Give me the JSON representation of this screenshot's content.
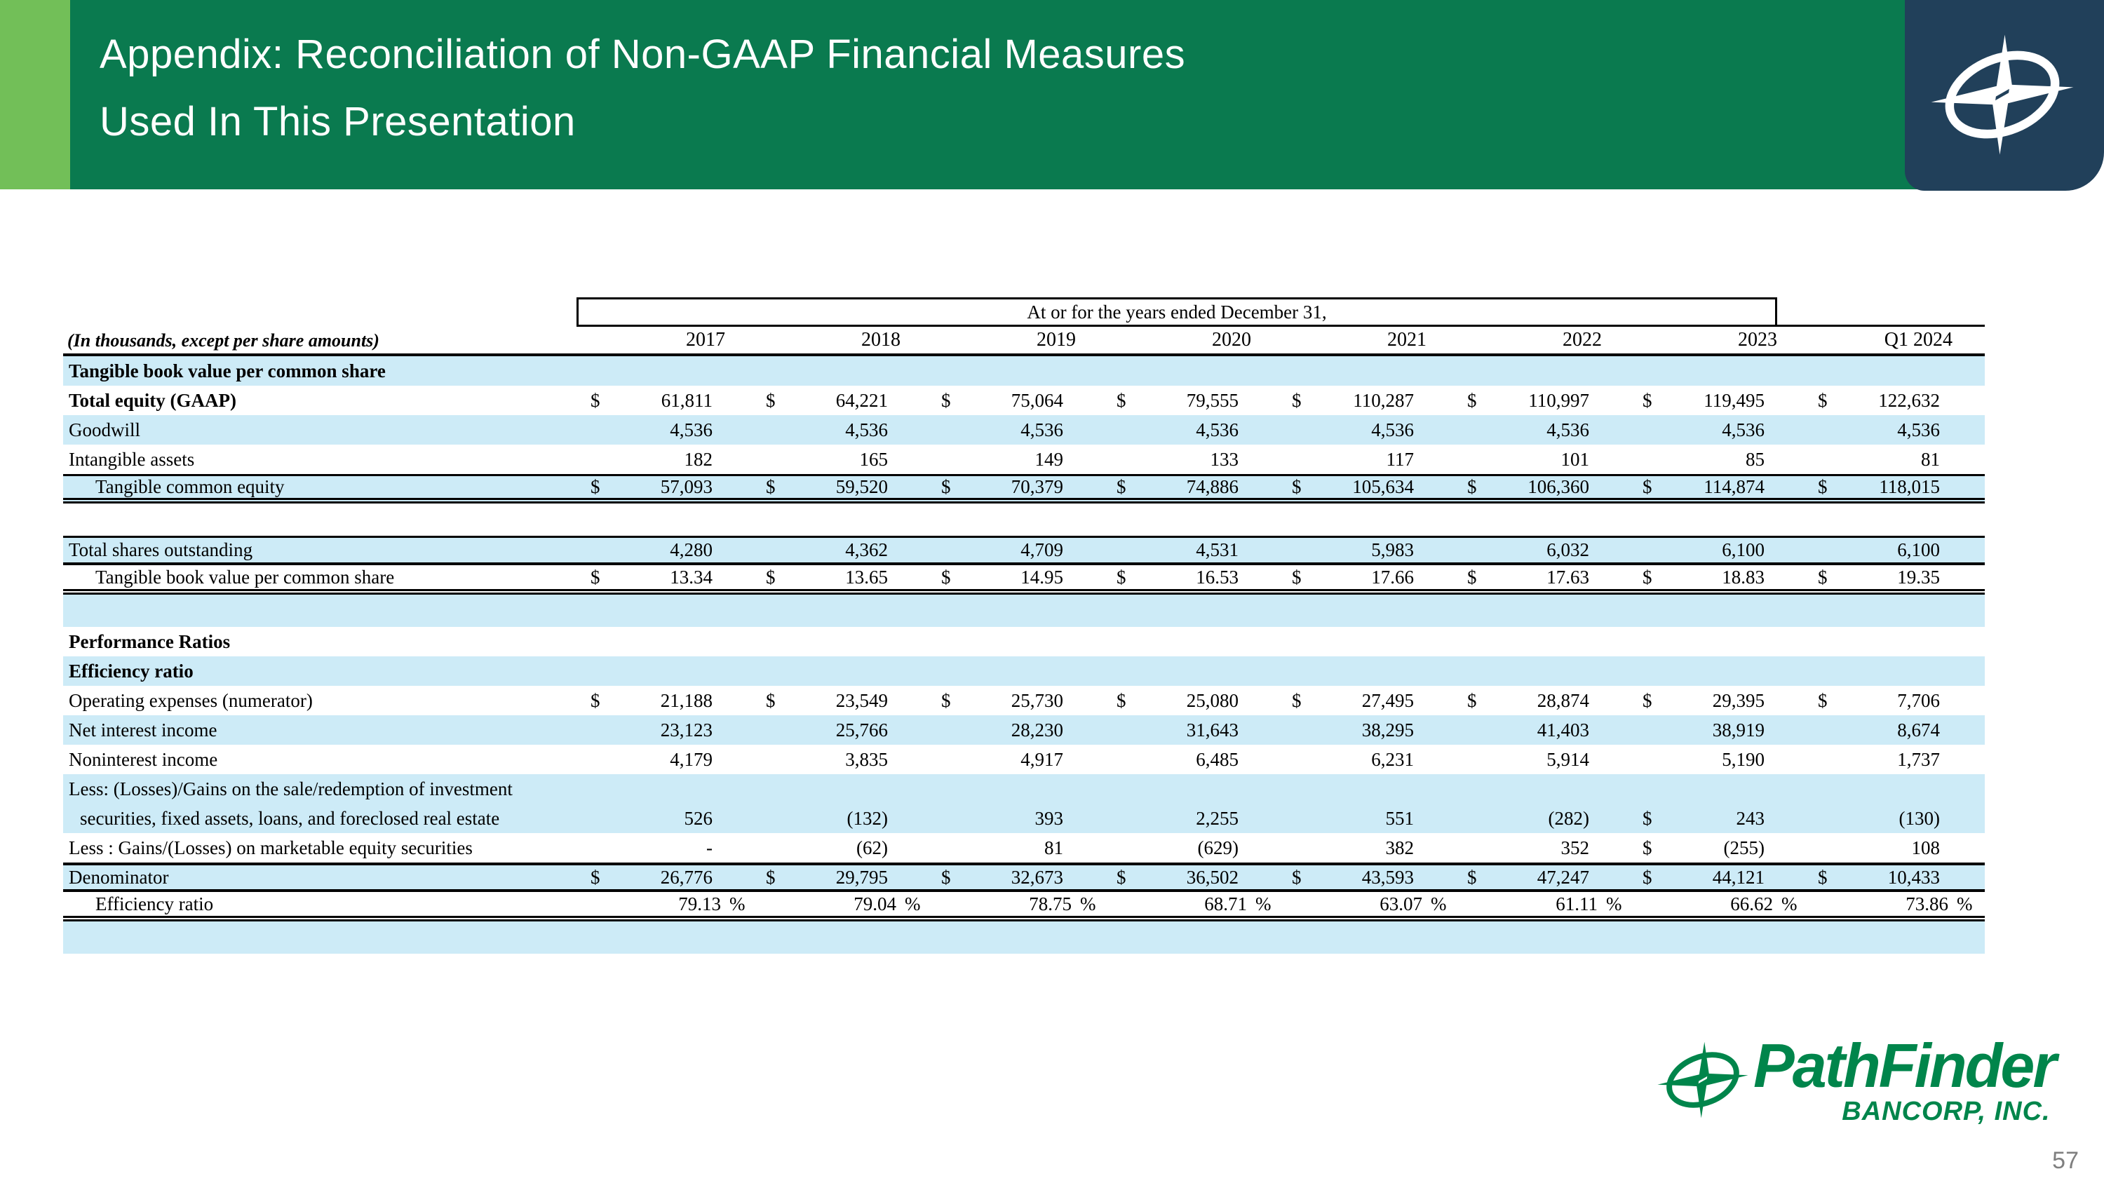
{
  "header": {
    "title_line1": "Appendix: Reconciliation of Non-GAAP Financial Measures",
    "title_line2": "Used In This Presentation"
  },
  "colors": {
    "header_green": "#0A7A4F",
    "accent_green": "#72BF58",
    "corner_navy": "#21405A",
    "row_blue": "#CDEBF7",
    "logo_green": "#00854B",
    "page_number_gray": "#7F7F7F"
  },
  "table": {
    "spanner": "At or for the years ended December 31,",
    "unit_note": "(In thousands, except per share amounts)",
    "columns": [
      "2017",
      "2018",
      "2019",
      "2020",
      "2021",
      "2022",
      "2023",
      "Q1 2024"
    ],
    "rows": [
      {
        "label": "Tangible book value per common share",
        "bold": true,
        "shade": "blue",
        "cells": []
      },
      {
        "label": "Total equity (GAAP)",
        "bold": true,
        "shade": "white",
        "cells": [
          "$ 61,811",
          "$ 64,221",
          "$ 75,064",
          "$ 79,555",
          "$ 110,287",
          "$ 110,997",
          "$ 119,495",
          "$ 122,632"
        ]
      },
      {
        "label": "Goodwill",
        "shade": "blue",
        "cells": [
          "4,536",
          "4,536",
          "4,536",
          "4,536",
          "4,536",
          "4,536",
          "4,536",
          "4,536"
        ]
      },
      {
        "label": "Intangible assets",
        "shade": "white",
        "cells": [
          "182",
          "165",
          "149",
          "133",
          "117",
          "101",
          "85",
          "81"
        ]
      },
      {
        "label": "Tangible common equity",
        "shade": "blue",
        "indent": 1,
        "bt": 3,
        "bb": "d",
        "cells": [
          "$ 57,093",
          "$ 59,520",
          "$ 70,379",
          "$ 74,886",
          "$ 105,634",
          "$ 106,360",
          "$ 114,874",
          "$ 118,015"
        ]
      },
      {
        "label": "",
        "shade": "white",
        "blank": true,
        "cells": []
      },
      {
        "label": "Total shares outstanding",
        "shade": "blue",
        "bt": 3,
        "bb": "s",
        "cells": [
          "4,280",
          "4,362",
          "4,709",
          "4,531",
          "5,983",
          "6,032",
          "6,100",
          "6,100"
        ]
      },
      {
        "label": "Tangible book value per common share",
        "shade": "white",
        "indent": 1,
        "bb": "d",
        "cells": [
          "$ 13.34",
          "$ 13.65",
          "$ 14.95",
          "$ 16.53",
          "$ 17.66",
          "$ 17.63",
          "$ 18.83",
          "$ 19.35"
        ]
      },
      {
        "label": "",
        "shade": "blue",
        "blank": true,
        "cells": []
      },
      {
        "label": "Performance Ratios",
        "bold": true,
        "shade": "white",
        "cells": []
      },
      {
        "label": "Efficiency ratio",
        "bold": true,
        "shade": "blue",
        "cells": []
      },
      {
        "label": "Operating expenses (numerator)",
        "shade": "white",
        "cells": [
          "$ 21,188",
          "$ 23,549",
          "$ 25,730",
          "$ 25,080",
          "$ 27,495",
          "$ 28,874",
          "$ 29,395",
          "$ 7,706"
        ]
      },
      {
        "label": "Net interest income",
        "shade": "blue",
        "cells": [
          "23,123",
          "25,766",
          "28,230",
          "31,643",
          "38,295",
          "41,403",
          "38,919",
          "8,674"
        ]
      },
      {
        "label": "Noninterest income",
        "shade": "white",
        "cells": [
          "4,179",
          "3,835",
          "4,917",
          "6,485",
          "6,231",
          "5,914",
          "5,190",
          "1,737"
        ]
      },
      {
        "label": "Less: (Losses)/Gains on the sale/redemption of investment",
        "shade": "blue",
        "cells": []
      },
      {
        "label": "securities, fixed assets, loans, and foreclosed real estate",
        "shade": "blue",
        "indent_sm": true,
        "cells": [
          "526",
          "(132)",
          "393",
          "2,255",
          "551",
          "(282)",
          "$ 243",
          "(130)"
        ]
      },
      {
        "label": "Less : Gains/(Losses) on marketable equity securities",
        "shade": "white",
        "cells": [
          "-",
          "(62)",
          "81",
          "(629)",
          "382",
          "352",
          "$ (255)",
          "108"
        ]
      },
      {
        "label": "Denominator",
        "shade": "blue",
        "bt": 4,
        "bb": "s",
        "cells": [
          "$ 26,776",
          "$ 29,795",
          "$ 32,673",
          "$ 36,502",
          "$ 43,593",
          "$ 47,247",
          "$ 44,121",
          "$ 10,433"
        ]
      },
      {
        "label": "Efficiency ratio",
        "shade": "white",
        "indent": 1,
        "bb": "d",
        "cells": [
          "79.13 %",
          "79.04 %",
          "78.75 %",
          "68.71 %",
          "63.07 %",
          "61.11 %",
          "66.62 %",
          "73.86 %"
        ]
      },
      {
        "label": "",
        "shade": "blue",
        "blank": true,
        "cells": []
      }
    ]
  },
  "footer": {
    "brand": "PathFinder",
    "brand_sub": "BANCORP, INC.",
    "page_number": "57"
  }
}
